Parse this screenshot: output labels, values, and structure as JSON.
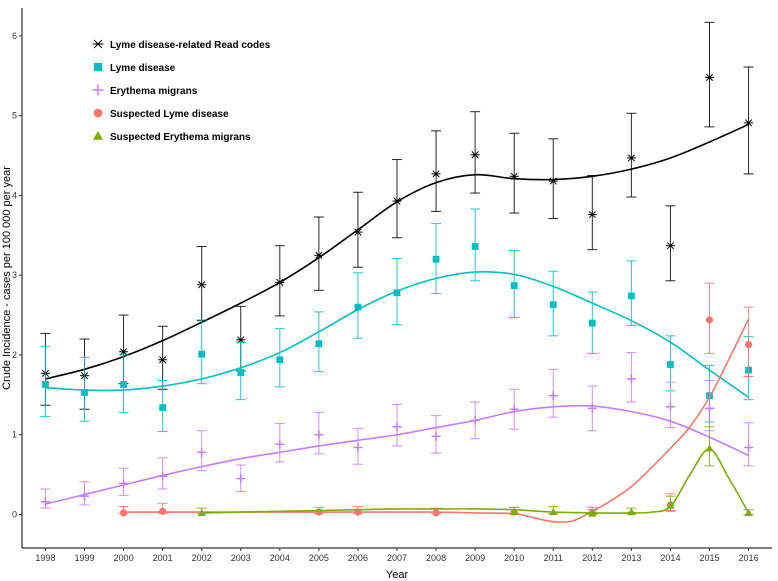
{
  "chart_data": {
    "type": "line",
    "title": "",
    "xlabel": "Year",
    "ylabel": "Crude Incidence - cases per 100 000 per year",
    "ylim": [
      -0.42,
      6.35
    ],
    "xlim": [
      1997.4,
      2016.6
    ],
    "y_ticks": [
      0,
      1,
      2,
      3,
      4,
      5,
      6
    ],
    "x_tick_labels": [
      "1998",
      "1999",
      "2000",
      "2001",
      "2002",
      "2003",
      "2004",
      "2005",
      "2006",
      "2007",
      "2008",
      "2009",
      "2010",
      "2011",
      "2012",
      "2013",
      "2014",
      "2015",
      "2016"
    ],
    "grid": false,
    "legend_position": "top-left",
    "series": [
      {
        "name": "Lyme disease-related Read codes",
        "color": "#000000",
        "marker": "asterisk",
        "x": [
          1998,
          1999,
          2000,
          2001,
          2002,
          2003,
          2004,
          2005,
          2006,
          2007,
          2008,
          2009,
          2010,
          2011,
          2012,
          2013,
          2014,
          2015,
          2016
        ],
        "values": [
          1.77,
          1.74,
          2.04,
          1.94,
          2.88,
          2.19,
          2.91,
          3.25,
          3.54,
          3.93,
          4.27,
          4.51,
          4.24,
          4.18,
          3.76,
          4.47,
          3.37,
          5.48,
          4.91
        ],
        "lower": [
          1.37,
          1.32,
          1.64,
          1.57,
          2.43,
          1.8,
          2.49,
          2.81,
          3.1,
          3.47,
          3.8,
          4.03,
          3.78,
          3.71,
          3.32,
          3.98,
          2.93,
          4.86,
          4.27
        ],
        "upper": [
          2.27,
          2.2,
          2.5,
          2.36,
          3.36,
          2.61,
          3.37,
          3.73,
          4.04,
          4.45,
          4.81,
          5.05,
          4.78,
          4.71,
          4.25,
          5.03,
          3.87,
          6.17,
          5.61
        ],
        "trend": [
          1.7,
          1.82,
          1.98,
          2.18,
          2.41,
          2.65,
          2.91,
          3.22,
          3.57,
          3.92,
          4.16,
          4.26,
          4.21,
          4.2,
          4.24,
          4.33,
          4.47,
          4.67,
          4.89
        ]
      },
      {
        "name": "Lyme disease",
        "color": "#00BFC4",
        "marker": "square",
        "x": [
          1998,
          1999,
          2000,
          2001,
          2002,
          2003,
          2004,
          2005,
          2006,
          2007,
          2008,
          2009,
          2010,
          2011,
          2012,
          2013,
          2014,
          2015,
          2016
        ],
        "values": [
          1.63,
          1.53,
          1.63,
          1.34,
          2.01,
          1.78,
          1.94,
          2.14,
          2.6,
          2.78,
          3.2,
          3.36,
          2.87,
          2.63,
          2.4,
          2.74,
          1.88,
          1.49,
          1.81
        ],
        "lower": [
          1.23,
          1.17,
          1.28,
          1.04,
          1.64,
          1.44,
          1.6,
          1.79,
          2.21,
          2.38,
          2.77,
          2.93,
          2.47,
          2.24,
          2.02,
          2.37,
          1.55,
          1.16,
          1.44
        ],
        "upper": [
          2.11,
          1.97,
          2.0,
          1.68,
          2.44,
          2.16,
          2.33,
          2.54,
          3.03,
          3.21,
          3.65,
          3.83,
          3.31,
          3.05,
          2.79,
          3.18,
          2.24,
          1.87,
          2.23
        ],
        "trend": [
          1.59,
          1.56,
          1.56,
          1.61,
          1.7,
          1.84,
          2.03,
          2.29,
          2.57,
          2.8,
          2.96,
          3.04,
          3.01,
          2.86,
          2.65,
          2.43,
          2.16,
          1.81,
          1.47
        ]
      },
      {
        "name": "Erythema migrans",
        "color": "#C77CFF",
        "marker": "cross",
        "x": [
          1998,
          1999,
          2000,
          2001,
          2002,
          2003,
          2004,
          2005,
          2006,
          2007,
          2008,
          2009,
          2010,
          2011,
          2012,
          2013,
          2014,
          2015,
          2016
        ],
        "values": [
          0.16,
          0.23,
          0.39,
          0.48,
          0.78,
          0.45,
          0.88,
          1.0,
          0.84,
          1.1,
          0.98,
          1.18,
          1.32,
          1.49,
          1.33,
          1.7,
          1.35,
          1.33,
          0.84
        ],
        "lower": [
          0.08,
          0.12,
          0.24,
          0.32,
          0.55,
          0.29,
          0.66,
          0.76,
          0.63,
          0.86,
          0.77,
          0.95,
          1.07,
          1.22,
          1.05,
          1.41,
          1.09,
          1.05,
          0.61
        ],
        "upper": [
          0.32,
          0.41,
          0.58,
          0.71,
          1.05,
          0.62,
          1.14,
          1.28,
          1.08,
          1.38,
          1.24,
          1.41,
          1.57,
          1.82,
          1.61,
          2.03,
          1.66,
          1.68,
          1.15
        ],
        "trend": [
          0.13,
          0.25,
          0.37,
          0.49,
          0.6,
          0.7,
          0.78,
          0.86,
          0.93,
          1.0,
          1.09,
          1.18,
          1.29,
          1.35,
          1.36,
          1.29,
          1.17,
          0.97,
          0.74
        ]
      },
      {
        "name": "Suspected Lyme disease",
        "color": "#F8766D",
        "marker": "circle",
        "x": [
          2000,
          2001,
          2005,
          2006,
          2008,
          2010,
          2012,
          2014,
          2015,
          2016
        ],
        "values": [
          0.02,
          0.04,
          0.03,
          0.03,
          0.02,
          0.03,
          0.02,
          0.12,
          2.44,
          2.13
        ],
        "lower": [
          0.01,
          0.01,
          0.01,
          0.01,
          0.01,
          0.01,
          0.01,
          0.05,
          2.02,
          1.73
        ],
        "upper": [
          0.1,
          0.14,
          0.09,
          0.1,
          0.08,
          0.09,
          0.09,
          0.26,
          2.9,
          2.6
        ],
        "trend_x": [
          2000,
          2001,
          2002,
          2003,
          2004,
          2005,
          2006,
          2007,
          2008,
          2009,
          2010,
          2010.5,
          2011,
          2011.5,
          2012,
          2012.5,
          2013,
          2013.5,
          2014,
          2014.5,
          2015,
          2015.5,
          2016
        ],
        "trend": [
          0.03,
          0.03,
          0.03,
          0.03,
          0.03,
          0.03,
          0.03,
          0.03,
          0.03,
          0.02,
          0.01,
          -0.04,
          -0.09,
          -0.08,
          0.04,
          0.18,
          0.35,
          0.58,
          0.83,
          1.1,
          1.47,
          1.95,
          2.45
        ]
      },
      {
        "name": "Suspected Erythema migrans",
        "color": "#7CAE00",
        "marker": "triangle",
        "x": [
          2002,
          2010,
          2011,
          2012,
          2013,
          2014,
          2015,
          2016
        ],
        "values": [
          0.02,
          0.03,
          0.03,
          0.01,
          0.03,
          0.11,
          0.83,
          0.02
        ],
        "lower": [
          0.01,
          0.01,
          0.01,
          0.0,
          0.01,
          0.04,
          0.61,
          0.0
        ],
        "upper": [
          0.08,
          0.09,
          0.1,
          0.06,
          0.08,
          0.23,
          1.1,
          0.06
        ],
        "trend_x": [
          2002,
          2003,
          2004,
          2005,
          2006,
          2007,
          2008,
          2009,
          2010,
          2011,
          2012,
          2013,
          2013.5,
          2014,
          2014.5,
          2015,
          2015.5,
          2016
        ],
        "trend": [
          0.02,
          0.03,
          0.04,
          0.05,
          0.06,
          0.07,
          0.07,
          0.07,
          0.06,
          0.03,
          0.02,
          0.02,
          0.03,
          0.1,
          0.5,
          0.82,
          0.45,
          0.02
        ]
      }
    ]
  }
}
